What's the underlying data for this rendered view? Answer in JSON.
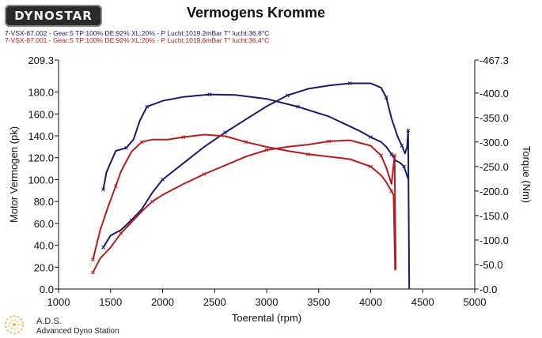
{
  "header": {
    "logo_text": "DYNOSTAR",
    "title": "Vermogens Kromme",
    "runs": [
      {
        "label": "7-VSX-87.002 - Gear:5 TP:100% DE:92% XL:20%   - P Lucht:1019.2mBar T° lucht:36.8°C",
        "color": "#1a1a6e"
      },
      {
        "label": "7-VSX-87.001 - Gear:5 TP:100% DE:92% XL:20%   - P Lucht:1019.6mBar T° lucht:36.4°C",
        "color": "#b51c1c"
      }
    ]
  },
  "footer": {
    "name": "A.D.S.",
    "subtitle": "Advanced Dyno Station"
  },
  "chart_data": {
    "type": "line",
    "title": "Vermogens Kromme",
    "xlabel": "Toerental (rpm)",
    "ylabel": "Motor Vermogen (pk)",
    "y2label": "Torque (Nm)",
    "xlim": [
      1000,
      5000
    ],
    "ylim": [
      0,
      209.3
    ],
    "y2lim": [
      0,
      467.3
    ],
    "x_ticks": [
      "1000",
      "1500",
      "2000",
      "2500",
      "3000",
      "3500",
      "4000",
      "4500",
      "5000"
    ],
    "y_ticks": [
      "0.0",
      "20.0",
      "40.0",
      "60.0",
      "80.0",
      "100.0",
      "120.0",
      "140.0",
      "160.0",
      "180.0",
      "209.3"
    ],
    "y2_ticks": [
      "-0.0",
      "-50.0",
      "-100.0",
      "-150.0",
      "-200.0",
      "-250.0",
      "-300.0",
      "-350.0",
      "-400.0",
      "-467.3"
    ],
    "grid": false,
    "series": [
      {
        "run": "7-VSX-87.002",
        "kind": "torque",
        "axis": "right",
        "color": "#1a1a6e",
        "x": [
          1430,
          1460,
          1550,
          1650,
          1720,
          1780,
          1850,
          2000,
          2200,
          2450,
          2700,
          3000,
          3300,
          3600,
          3900,
          4000,
          4100,
          4150,
          4200,
          4240,
          4280,
          4320,
          4360
        ],
        "y": [
          203,
          238,
          282,
          288,
          305,
          343,
          372,
          384,
          392,
          397,
          396,
          388,
          372,
          352,
          322,
          310,
          300,
          290,
          275,
          262,
          258,
          250,
          225
        ]
      },
      {
        "run": "7-VSX-87.002",
        "kind": "power",
        "axis": "left",
        "color": "#1a1a6e",
        "x": [
          1430,
          1500,
          1600,
          1700,
          1800,
          1900,
          2000,
          2200,
          2400,
          2600,
          2800,
          3000,
          3200,
          3400,
          3600,
          3800,
          4000,
          4100,
          4150,
          4200,
          4260,
          4300,
          4330,
          4350,
          4360,
          4370
        ],
        "y": [
          38,
          49,
          54,
          63,
          73,
          88,
          100,
          115,
          130,
          143,
          155,
          167,
          177,
          183,
          186,
          188,
          188,
          184,
          175,
          156,
          139,
          131,
          124,
          130,
          145,
          0
        ]
      },
      {
        "run": "7-VSX-87.001",
        "kind": "torque",
        "axis": "right",
        "color": "#b51c1c",
        "x": [
          1330,
          1400,
          1480,
          1550,
          1600,
          1700,
          1800,
          1900,
          2050,
          2200,
          2400,
          2600,
          2800,
          3000,
          3200,
          3400,
          3600,
          3800,
          4000,
          4100,
          4150,
          4200,
          4220,
          4235
        ],
        "y": [
          60,
          120,
          170,
          210,
          240,
          280,
          300,
          305,
          305,
          310,
          315,
          312,
          300,
          290,
          282,
          275,
          270,
          265,
          250,
          232,
          218,
          200,
          192,
          38
        ]
      },
      {
        "run": "7-VSX-87.001",
        "kind": "power",
        "axis": "left",
        "color": "#b51c1c",
        "x": [
          1330,
          1400,
          1500,
          1600,
          1700,
          1800,
          1900,
          2000,
          2200,
          2400,
          2600,
          2800,
          3000,
          3200,
          3400,
          3600,
          3800,
          4000,
          4100,
          4150,
          4200,
          4230,
          4240
        ],
        "y": [
          15,
          28,
          38,
          51,
          61,
          71,
          80,
          86,
          96,
          105,
          113,
          121,
          127,
          130,
          132,
          135,
          136,
          131,
          122,
          111,
          96,
          122,
          18
        ]
      }
    ]
  }
}
